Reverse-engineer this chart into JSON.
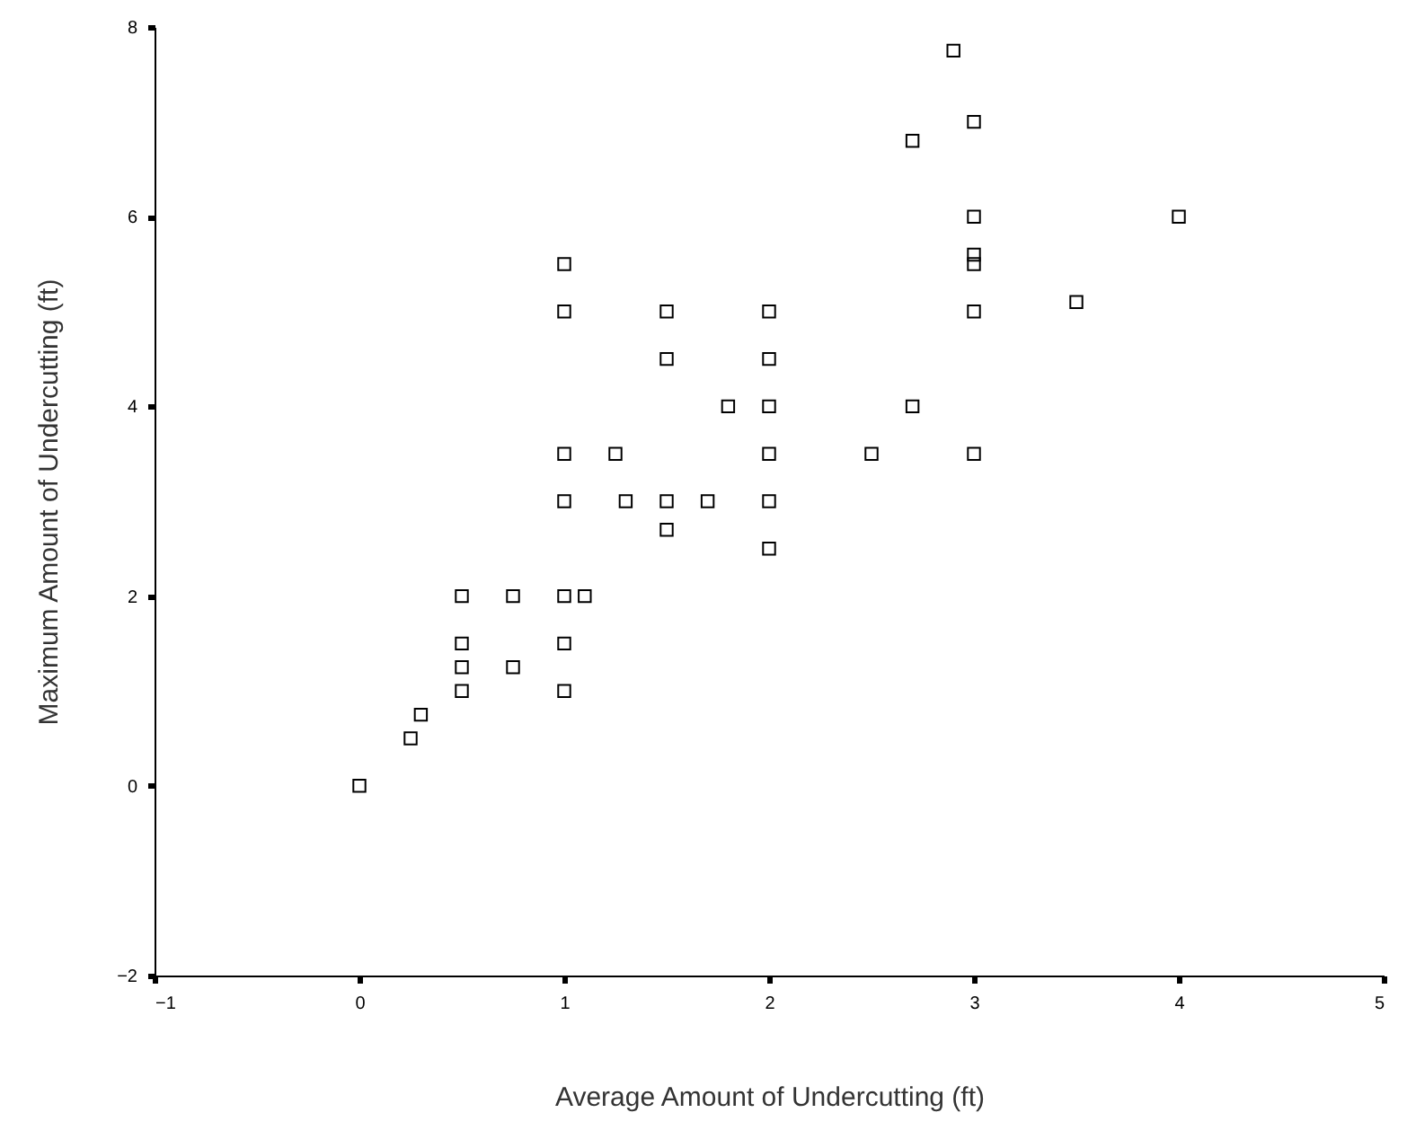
{
  "chart_data": {
    "type": "scatter",
    "xlabel": "Average Amount of Undercutting (ft)",
    "ylabel": "Maximum Amount of Undercutting (ft)",
    "xlim": [
      -1,
      5
    ],
    "ylim": [
      -2,
      8
    ],
    "xticks": [
      -1,
      0,
      1,
      2,
      3,
      4,
      5
    ],
    "yticks": [
      -2,
      0,
      2,
      4,
      6,
      8
    ],
    "grid": false,
    "marker": "square",
    "series": [
      {
        "color": "#000000",
        "x": [
          0,
          0.25,
          0.3,
          0.5,
          0.5,
          0.5,
          0.5,
          0.75,
          0.75,
          1,
          1,
          1,
          1,
          1,
          1,
          1,
          1.1,
          1.25,
          1.3,
          1.5,
          1.5,
          1.5,
          1.5,
          1.7,
          1.8,
          2,
          2,
          2,
          2,
          2,
          2,
          2.5,
          2.7,
          2.7,
          2.9,
          3,
          3,
          3,
          3,
          3,
          3,
          3.5,
          4
        ],
        "values": [
          0,
          0.5,
          0.75,
          2,
          1.5,
          1.25,
          1,
          2,
          1.25,
          5.5,
          5,
          3.5,
          3,
          2,
          1.5,
          1,
          2,
          3.5,
          3,
          5,
          4.5,
          3,
          2.7,
          3,
          4,
          5,
          4.5,
          4,
          3.5,
          3,
          2.5,
          3.5,
          6.8,
          4,
          7.75,
          7,
          6,
          5.6,
          5.5,
          5,
          3.5,
          5.1,
          6
        ]
      }
    ]
  }
}
